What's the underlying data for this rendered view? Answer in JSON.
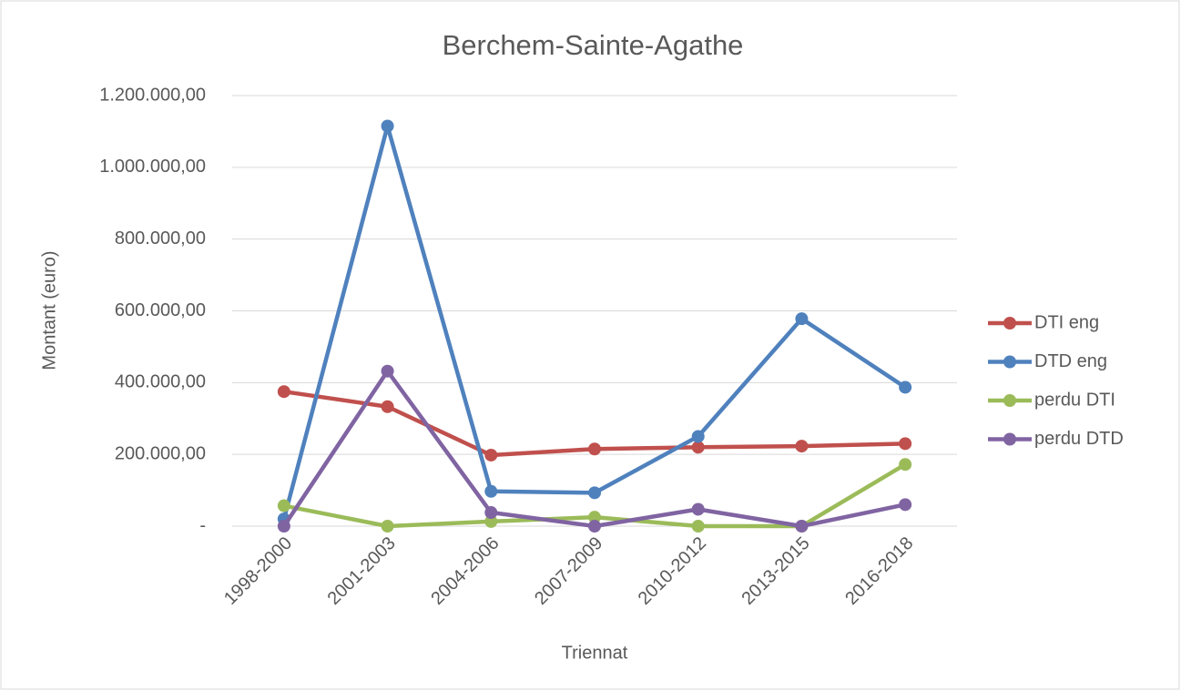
{
  "chart_data": {
    "type": "line",
    "title": "Berchem-Sainte-Agathe",
    "x_label": "Triennat",
    "y_label": "Montant (euro)",
    "categories": [
      "1998-2000",
      "2001-2003",
      "2004-2006",
      "2007-2009",
      "2010-2012",
      "2013-2015",
      "2016-2018"
    ],
    "series": [
      {
        "name": "DTI eng",
        "color": "#c0504d",
        "values": [
          375000,
          333000,
          198000,
          215000,
          220000,
          223000,
          230000
        ]
      },
      {
        "name": "DTD eng",
        "color": "#4f81bd",
        "values": [
          20000,
          1115000,
          97000,
          93000,
          250000,
          578000,
          387000
        ]
      },
      {
        "name": "perdu DTI",
        "color": "#9bbb59",
        "values": [
          57000,
          0,
          13000,
          25000,
          0,
          0,
          172000
        ]
      },
      {
        "name": "perdu DTD",
        "color": "#8064a2",
        "values": [
          0,
          432000,
          38000,
          0,
          47000,
          0,
          60000
        ]
      }
    ],
    "ylim": [
      0,
      1200000
    ],
    "yticks": [
      {
        "value": 0,
        "label": "-"
      },
      {
        "value": 200000,
        "label": "200.000,00"
      },
      {
        "value": 400000,
        "label": "400.000,00"
      },
      {
        "value": 600000,
        "label": "600.000,00"
      },
      {
        "value": 800000,
        "label": "800.000,00"
      },
      {
        "value": 1000000,
        "label": "1.000.000,00"
      },
      {
        "value": 1200000,
        "label": "1.200.000,00"
      }
    ],
    "grid": true,
    "legend": "right"
  }
}
